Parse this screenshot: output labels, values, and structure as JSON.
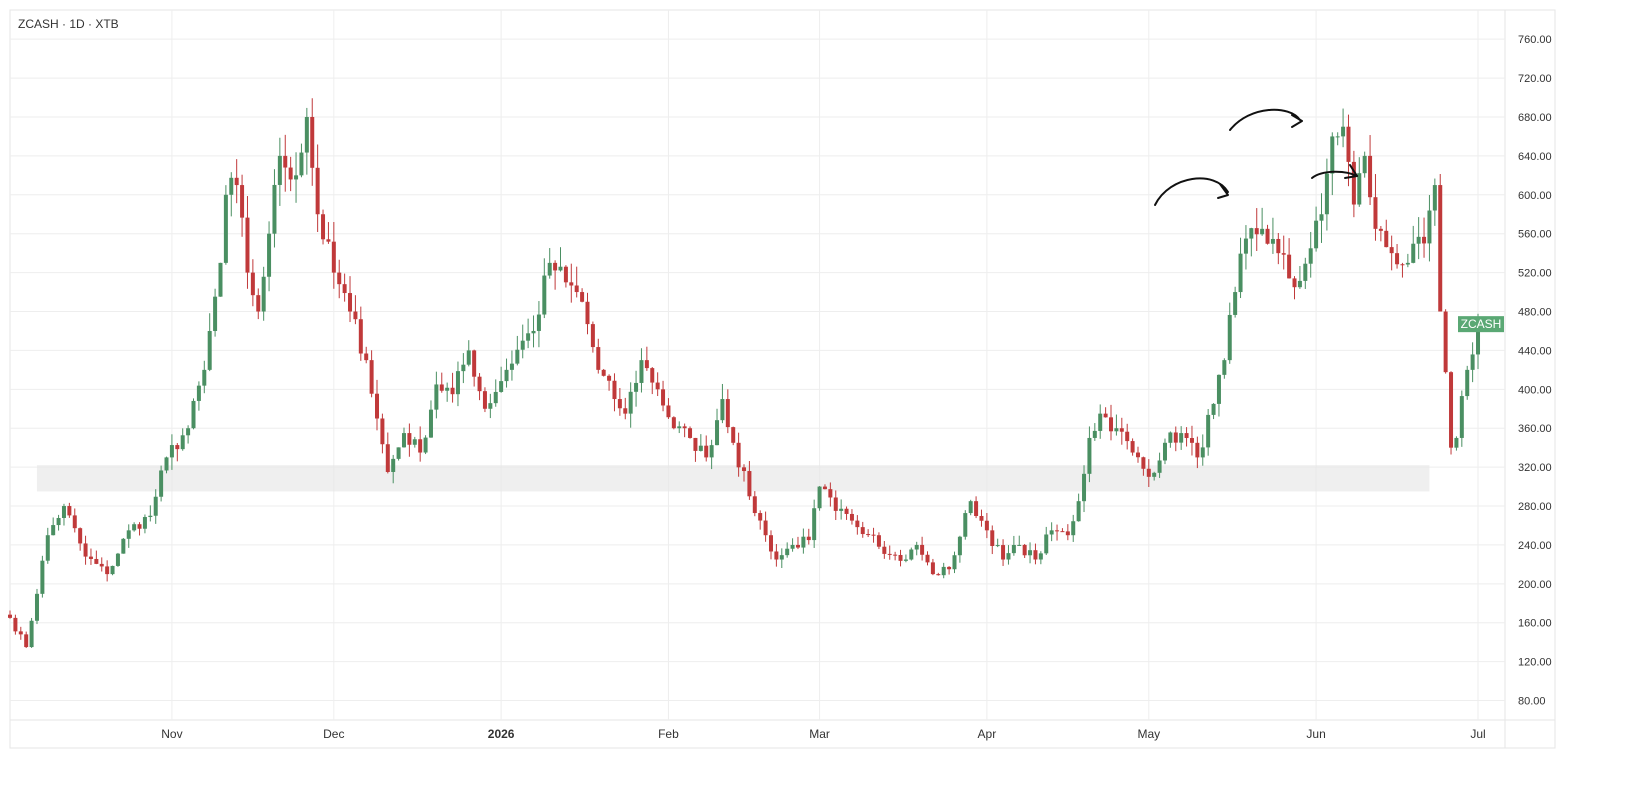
{
  "header": {
    "title": "ZCASH · 1D · XTB"
  },
  "colors": {
    "up": "#4a8f62",
    "down": "#c0393a",
    "grid": "#eeeeee",
    "axis_text": "#333333",
    "zone": "#e6e6e6",
    "price_label_bg": "#5aa874",
    "annotation": "#111111"
  },
  "chart_data": {
    "type": "candlestick",
    "title": "ZCASH · 1D · XTB",
    "price_tag": {
      "label": "ZCASH",
      "value": 467
    },
    "y_ticks": [
      "80.00",
      "120.00",
      "160.00",
      "200.00",
      "240.00",
      "280.00",
      "320.00",
      "360.00",
      "400.00",
      "440.00",
      "480.00",
      "520.00",
      "560.00",
      "600.00",
      "640.00",
      "680.00",
      "720.00",
      "760.00"
    ],
    "ylim": [
      60,
      790
    ],
    "x_start": "2025-10-02",
    "x_end": "2026-07-06",
    "x_ticks": [
      {
        "label": "Nov",
        "date": "2025-11-01",
        "bold": false
      },
      {
        "label": "Dec",
        "date": "2025-12-01",
        "bold": false
      },
      {
        "label": "2026",
        "date": "2026-01-01",
        "bold": true
      },
      {
        "label": "Feb",
        "date": "2026-02-01",
        "bold": false
      },
      {
        "label": "Mar",
        "date": "2026-03-01",
        "bold": false
      },
      {
        "label": "Apr",
        "date": "2026-04-01",
        "bold": false
      },
      {
        "label": "May",
        "date": "2026-05-01",
        "bold": false
      },
      {
        "label": "Jun",
        "date": "2026-06-01",
        "bold": false
      },
      {
        "label": "Jul",
        "date": "2026-07-01",
        "bold": false
      }
    ],
    "support_zone": {
      "low": 295,
      "high": 322,
      "from": "2025-10-07",
      "to": "2026-06-22"
    },
    "daily_close_anchors": [
      [
        "2025-10-02",
        165
      ],
      [
        "2025-10-05",
        135
      ],
      [
        "2025-10-09",
        250
      ],
      [
        "2025-10-12",
        280
      ],
      [
        "2025-10-16",
        228
      ],
      [
        "2025-10-20",
        210
      ],
      [
        "2025-10-24",
        255
      ],
      [
        "2025-10-28",
        270
      ],
      [
        "2025-10-31",
        330
      ],
      [
        "2025-11-04",
        360
      ],
      [
        "2025-11-07",
        420
      ],
      [
        "2025-11-10",
        530
      ],
      [
        "2025-11-11",
        600
      ],
      [
        "2025-11-13",
        610
      ],
      [
        "2025-11-15",
        520
      ],
      [
        "2025-11-17",
        480
      ],
      [
        "2025-11-19",
        560
      ],
      [
        "2025-11-21",
        640
      ],
      [
        "2025-11-24",
        620
      ],
      [
        "2025-11-26",
        680
      ],
      [
        "2025-11-28",
        580
      ],
      [
        "2025-12-01",
        520
      ],
      [
        "2025-12-04",
        480
      ],
      [
        "2025-12-07",
        430
      ],
      [
        "2025-12-09",
        370
      ],
      [
        "2025-12-11",
        315
      ],
      [
        "2025-12-14",
        355
      ],
      [
        "2025-12-17",
        335
      ],
      [
        "2025-12-20",
        405
      ],
      [
        "2025-12-23",
        395
      ],
      [
        "2025-12-26",
        440
      ],
      [
        "2025-12-29",
        380
      ],
      [
        "2026-01-02",
        420
      ],
      [
        "2026-01-05",
        450
      ],
      [
        "2026-01-07",
        460
      ],
      [
        "2026-01-10",
        530
      ],
      [
        "2026-01-13",
        510
      ],
      [
        "2026-01-16",
        490
      ],
      [
        "2026-01-19",
        420
      ],
      [
        "2026-01-22",
        390
      ],
      [
        "2026-01-24",
        375
      ],
      [
        "2026-01-27",
        430
      ],
      [
        "2026-01-30",
        400
      ],
      [
        "2026-02-02",
        360
      ],
      [
        "2026-02-05",
        350
      ],
      [
        "2026-02-08",
        330
      ],
      [
        "2026-02-11",
        390
      ],
      [
        "2026-02-13",
        345
      ],
      [
        "2026-02-16",
        290
      ],
      [
        "2026-02-19",
        250
      ],
      [
        "2026-02-21",
        225
      ],
      [
        "2026-02-24",
        240
      ],
      [
        "2026-02-27",
        245
      ],
      [
        "2026-03-01",
        300
      ],
      [
        "2026-03-04",
        275
      ],
      [
        "2026-03-07",
        265
      ],
      [
        "2026-03-11",
        250
      ],
      [
        "2026-03-14",
        230
      ],
      [
        "2026-03-17",
        225
      ],
      [
        "2026-03-19",
        240
      ],
      [
        "2026-03-22",
        210
      ],
      [
        "2026-03-25",
        215
      ],
      [
        "2026-03-29",
        285
      ],
      [
        "2026-04-01",
        255
      ],
      [
        "2026-04-04",
        225
      ],
      [
        "2026-04-07",
        240
      ],
      [
        "2026-04-10",
        225
      ],
      [
        "2026-04-13",
        255
      ],
      [
        "2026-04-16",
        250
      ],
      [
        "2026-04-18",
        285
      ],
      [
        "2026-04-20",
        350
      ],
      [
        "2026-04-22",
        375
      ],
      [
        "2026-04-25",
        360
      ],
      [
        "2026-04-28",
        335
      ],
      [
        "2026-05-01",
        310
      ],
      [
        "2026-05-04",
        345
      ],
      [
        "2026-05-07",
        355
      ],
      [
        "2026-05-10",
        330
      ],
      [
        "2026-05-13",
        385
      ],
      [
        "2026-05-15",
        430
      ],
      [
        "2026-05-17",
        500
      ],
      [
        "2026-05-19",
        555
      ],
      [
        "2026-05-22",
        565
      ],
      [
        "2026-05-25",
        540
      ],
      [
        "2026-05-28",
        505
      ],
      [
        "2026-05-31",
        545
      ],
      [
        "2026-06-02",
        580
      ],
      [
        "2026-06-04",
        660
      ],
      [
        "2026-06-06",
        670
      ],
      [
        "2026-06-08",
        590
      ],
      [
        "2026-06-10",
        640
      ],
      [
        "2026-06-12",
        565
      ],
      [
        "2026-06-15",
        540
      ],
      [
        "2026-06-18",
        530
      ],
      [
        "2026-06-21",
        550
      ],
      [
        "2026-06-23",
        610
      ],
      [
        "2026-06-24",
        480
      ],
      [
        "2026-06-26",
        340
      ],
      [
        "2026-06-27",
        350
      ],
      [
        "2026-06-29",
        420
      ],
      [
        "2026-07-01",
        465
      ]
    ]
  }
}
